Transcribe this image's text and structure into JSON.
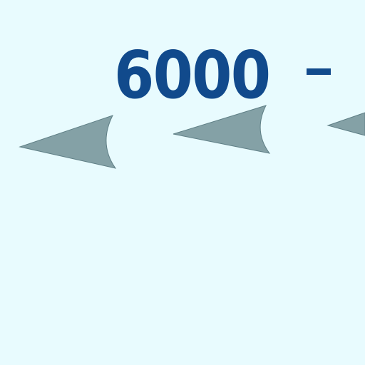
{
  "map": {
    "label_value": "6000",
    "label_color": "#114a8c",
    "background_color": "#e8fbfe",
    "arrow_color": "#84a1a6",
    "arrow_direction": "left",
    "arrow_icons": [
      "arrowhead-left-icon",
      "arrowhead-left-icon",
      "arrowhead-left-icon"
    ]
  }
}
